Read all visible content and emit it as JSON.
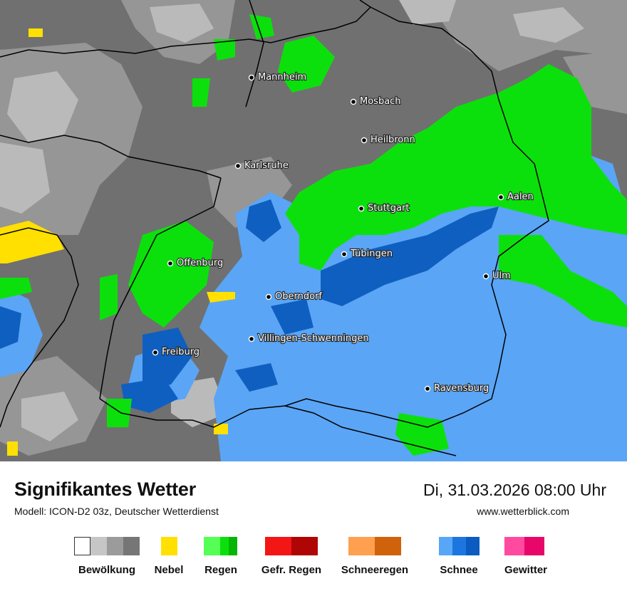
{
  "map": {
    "cities": [
      {
        "name": "Mannheim"
      },
      {
        "name": "Mosbach"
      },
      {
        "name": "Heilbronn"
      },
      {
        "name": "Karlsruhe"
      },
      {
        "name": "Stuttgart"
      },
      {
        "name": "Aalen"
      },
      {
        "name": "Tübingen"
      },
      {
        "name": "Offenburg"
      },
      {
        "name": "Ulm"
      },
      {
        "name": "Oberndorf"
      },
      {
        "name": "Villingen-Schwenningen"
      },
      {
        "name": "Freiburg"
      },
      {
        "name": "Ravensburg"
      }
    ],
    "colors": {
      "cloud_dark": "#707070",
      "cloud_mid": "#959595",
      "cloud_light": "#b9b9b9",
      "rain": "#0be00b",
      "snow_light": "#5aa5f5",
      "snow_dark": "#0f5fc0",
      "fog": "#ffe000",
      "border": "#000000"
    }
  },
  "footer": {
    "title": "Signifikantes Wetter",
    "model": "Modell: ICON-D2 03z, Deutscher Wetterdienst",
    "datetime": "Di, 31.03.2026 08:00 Uhr",
    "website": "www.wetterblick.com"
  },
  "legend": [
    {
      "label": "Bewölkung",
      "colors": [
        "#ffffff",
        "#c6c6c6",
        "#9b9b9b",
        "#767676"
      ]
    },
    {
      "label": "Nebel",
      "colors": [
        "#ffe000"
      ]
    },
    {
      "label": "Regen",
      "colors": [
        "#55ff55",
        "#0ce00c",
        "#06b506"
      ]
    },
    {
      "label": "Gefr. Regen",
      "colors": [
        "#f41515",
        "#b00505"
      ]
    },
    {
      "label": "Schneeregen",
      "colors": [
        "#ffa050",
        "#d0620b"
      ]
    },
    {
      "label": "Schnee",
      "colors": [
        "#58a6f8",
        "#1d76e0",
        "#0b5bc0"
      ]
    },
    {
      "label": "Gewitter",
      "colors": [
        "#ff4aa0",
        "#e8066a"
      ]
    }
  ]
}
